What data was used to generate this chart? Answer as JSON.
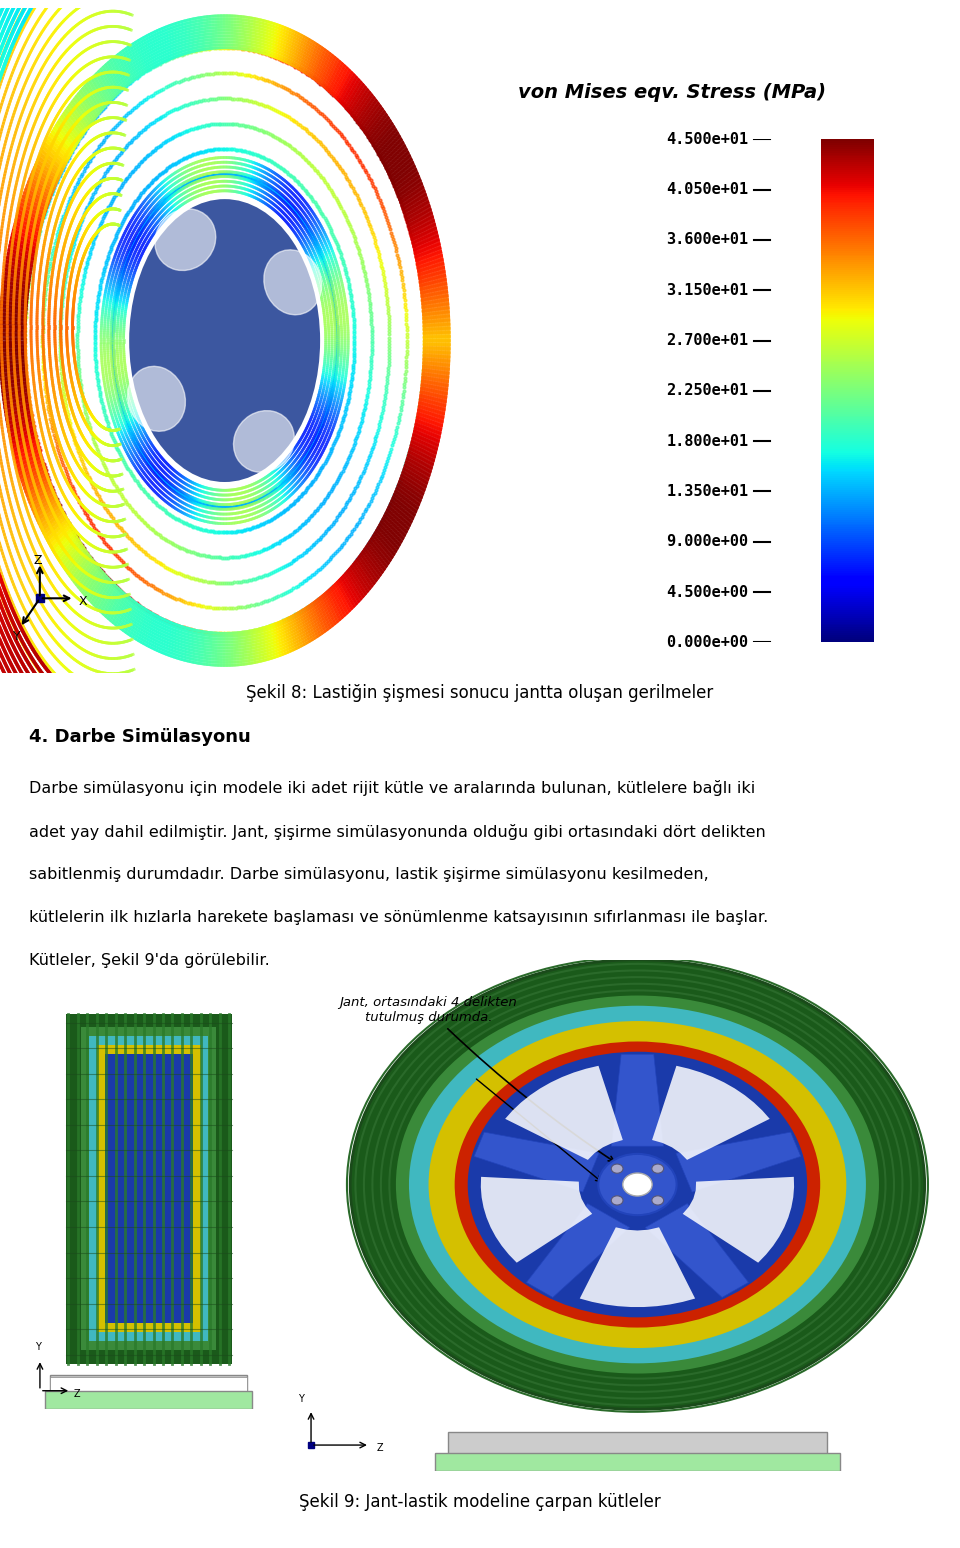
{
  "title_colorbar": "von Mises eqv. Stress (MPa)",
  "colorbar_labels": [
    "4.500e+01",
    "4.050e+01",
    "3.600e+01",
    "3.150e+01",
    "2.700e+01",
    "2.250e+01",
    "1.800e+01",
    "1.350e+01",
    "9.000e+00",
    "4.500e+00",
    "0.000e+00"
  ],
  "figure8_caption": "Şekil 8: Lastiğin şişmesi sonucu jantta oluşan gerilmeler",
  "section_title": "4. Darbe Simülasyonu",
  "para_lines": [
    "Darbe simülasyonu için modele iki adet rijit kütle ve aralarında bulunan, kütlelere bağlı iki",
    "adet yay dahil edilmiştir. Jant, şişirme simülasyonunda olduğu gibi ortasındaki dört delikten",
    "sabitlenmiş durumdadır. Darbe simülasyonu, lastik şişirme simülasyonu kesilmeden,",
    "kütlelerin ilk hızlarla harekete başlaması ve sönümlenme katsayısının sıfırlanması ile başlar.",
    "Kütleler, Şekil 9'da görülebilir."
  ],
  "annotation_text": "Jant, ortasındaki 4 delikten\ntutulmuş durumda.",
  "figure9_caption": "Şekil 9: Jant-lastik modeline çarpan kütleler",
  "tire_green_dark": "#2a6e2a",
  "tire_green_mid": "#3a8a3a",
  "tire_cyan": "#5ac8c8",
  "tire_yellow": "#d4c800",
  "tire_red": "#cc2200",
  "tire_blue": "#1a3aaa",
  "tire_blue_light": "#4488cc",
  "support_color": "#c8e8b0",
  "support_edge": "#888888",
  "bg_color": "#ffffff"
}
